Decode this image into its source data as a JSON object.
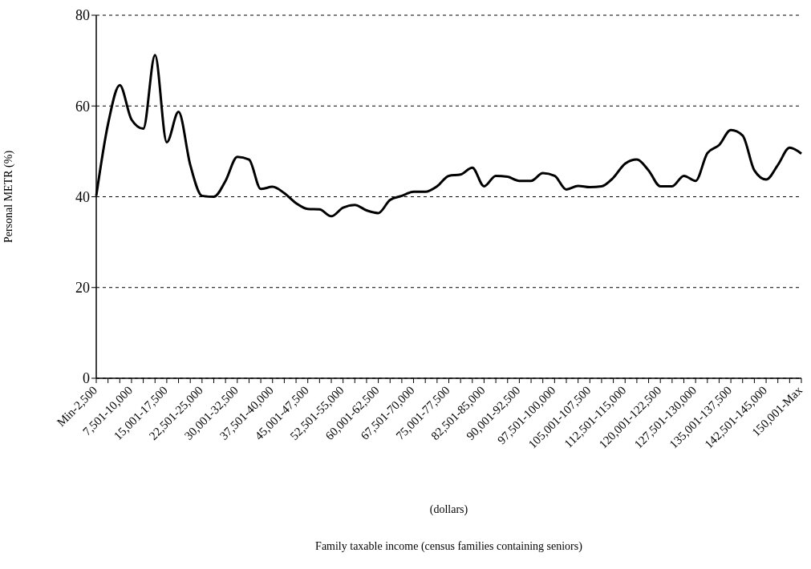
{
  "chart_data": {
    "type": "line",
    "ylabel": "Personal METR (%)",
    "xlabel": "(dollars)",
    "annotations": [
      "Family taxable income (census families containing seniors)"
    ],
    "categories": [
      "Min-2,500",
      null,
      null,
      "7,501-10,000",
      null,
      null,
      "15,001-17,500",
      null,
      null,
      "22,501-25,000",
      null,
      null,
      "30,001-32,500",
      null,
      null,
      "37,501-40,000",
      null,
      null,
      "45,001-47,500",
      null,
      null,
      "52,501-55,000",
      null,
      null,
      "60,001-62,500",
      null,
      null,
      "67,501-70,000",
      null,
      null,
      "75,001-77,500",
      null,
      null,
      "82,501-85,000",
      null,
      null,
      "90,001-92,500",
      null,
      null,
      "97,501-100,000",
      null,
      null,
      "105,001-107,500",
      null,
      null,
      "112,501-115,000",
      null,
      null,
      "120,001-122,500",
      null,
      null,
      "127,501-130,000",
      null,
      null,
      "135,001-137,500",
      null,
      null,
      "142,501-145,000",
      null,
      null,
      "150,001-Max"
    ],
    "series": [
      {
        "color": "#000000",
        "values": [
          40.2,
          56,
          64.6,
          57,
          55,
          71.2,
          52,
          58.7,
          47,
          40.2,
          40,
          43.5,
          48.8,
          48.2,
          41.7,
          42.2,
          40.8,
          38.6,
          37.3,
          37.2,
          35.7,
          37.6,
          38.2,
          37,
          36.4,
          39.3,
          40.2,
          41.1,
          41.1,
          42.3,
          44.6,
          44.9,
          46.4,
          42.3,
          44.6,
          44.4,
          43.5,
          43.5,
          45.2,
          44.6,
          41.6,
          42.4,
          42.1,
          42.3,
          44.2,
          47.3,
          48.2,
          45.8,
          42.3,
          42.3,
          44.6,
          43.5,
          49.6,
          51.4,
          54.7,
          53.5,
          45.8,
          43.8,
          47,
          50.8,
          49.5
        ]
      }
    ],
    "ylim": [
      0,
      80
    ],
    "yticks": [
      0,
      20,
      40,
      60,
      80
    ],
    "grid": "y",
    "legend": false,
    "marker": "none",
    "line_style": "solid"
  }
}
